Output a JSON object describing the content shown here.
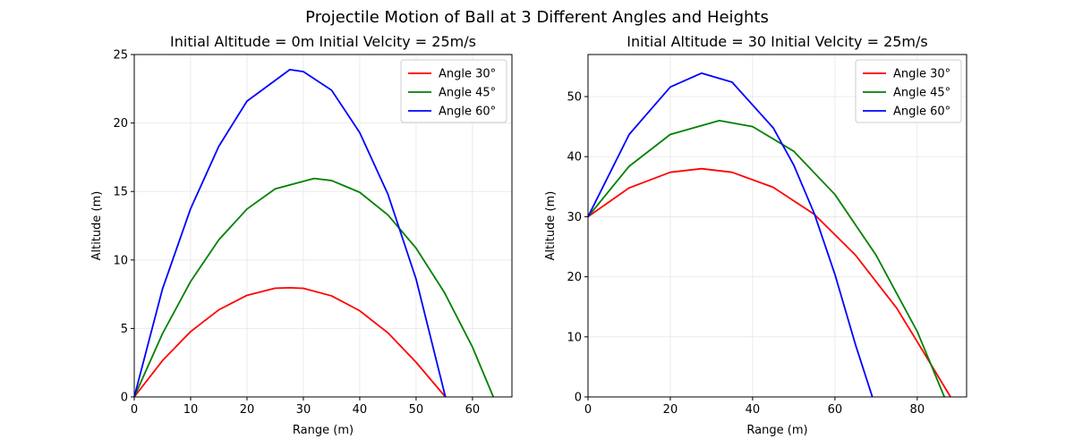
{
  "figure": {
    "title": "Projectile Motion of Ball at 3 Different Angles and Heights"
  },
  "chart_data": [
    {
      "type": "line",
      "title": "Initial Altitude = 0m    Initial Velcity = 25m/s",
      "xlabel": "Range (m)",
      "ylabel": "Altitude (m)",
      "xlim": [
        0,
        67
      ],
      "ylim": [
        0,
        25
      ],
      "xticks": [
        0,
        10,
        20,
        30,
        40,
        50,
        60
      ],
      "yticks": [
        0,
        5,
        10,
        15,
        20,
        25
      ],
      "grid": true,
      "legend_position": "top-right",
      "series": [
        {
          "name": "Angle 30°",
          "color": "#ff0000",
          "x": [
            0,
            5,
            10,
            15,
            20,
            25,
            27.6,
            30,
            35,
            40,
            45,
            50,
            55.2
          ],
          "y": [
            0,
            2.65,
            4.77,
            6.36,
            7.42,
            7.94,
            7.97,
            7.93,
            7.38,
            6.29,
            4.68,
            2.53,
            0
          ]
        },
        {
          "name": "Angle 45°",
          "color": "#008000",
          "x": [
            0,
            5,
            10,
            15,
            20,
            25,
            31.9,
            35,
            40,
            45,
            50,
            55,
            60,
            63.7
          ],
          "y": [
            0,
            4.61,
            8.43,
            11.47,
            13.72,
            15.19,
            15.95,
            15.8,
            14.94,
            13.29,
            10.86,
            7.64,
            3.64,
            0
          ]
        },
        {
          "name": "Angle 60°",
          "color": "#0000ff",
          "x": [
            0,
            5,
            10,
            15,
            20,
            27.6,
            30,
            35,
            40,
            45,
            50,
            55.2
          ],
          "y": [
            0,
            7.87,
            13.75,
            18.3,
            21.6,
            23.9,
            23.75,
            22.4,
            19.3,
            14.8,
            8.6,
            0
          ]
        }
      ]
    },
    {
      "type": "line",
      "title": "Initial Altitude = 30   Initial Velcity = 25m/s",
      "xlabel": "Range (m)",
      "ylabel": "Altitude (m)",
      "xlim": [
        0,
        92
      ],
      "ylim": [
        0,
        57
      ],
      "xticks": [
        0,
        20,
        40,
        60,
        80
      ],
      "yticks": [
        0,
        10,
        20,
        30,
        40,
        50
      ],
      "grid": true,
      "legend_position": "top-right",
      "series": [
        {
          "name": "Angle 30°",
          "color": "#ff0000",
          "x": [
            0,
            10,
            20,
            27.6,
            35,
            45,
            55,
            65,
            75,
            80,
            88.1
          ],
          "y": [
            30,
            34.8,
            37.4,
            38,
            37.4,
            34.9,
            30.4,
            23.6,
            14.8,
            9.2,
            0
          ]
        },
        {
          "name": "Angle 45°",
          "color": "#008000",
          "x": [
            0,
            10,
            20,
            31.9,
            40,
            50,
            60,
            70,
            80,
            86.6
          ],
          "y": [
            30,
            38.4,
            43.7,
            46,
            45,
            40.9,
            33.7,
            23.6,
            10.9,
            0
          ]
        },
        {
          "name": "Angle 60°",
          "color": "#0000ff",
          "x": [
            0,
            10,
            20,
            27.6,
            35,
            45,
            50,
            55,
            60,
            65,
            69.1
          ],
          "y": [
            30,
            43.7,
            51.6,
            53.9,
            52.4,
            44.8,
            38.6,
            30.5,
            20.4,
            8.7,
            0
          ]
        }
      ]
    }
  ]
}
